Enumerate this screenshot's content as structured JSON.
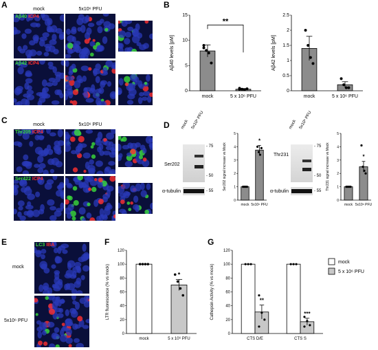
{
  "panels": {
    "A": {
      "label": "A",
      "cols": [
        "mock",
        "5x10⁶ PFU"
      ],
      "row1_stain": {
        "g": "Aβ40",
        "r": "ICP4"
      },
      "row2_stain": {
        "g": "Aβ42",
        "r": "ICP4"
      }
    },
    "B": {
      "label": "B"
    },
    "C": {
      "label": "C",
      "cols": [
        "mock",
        "5x10⁶ PFU"
      ],
      "row1_stain": {
        "g": "Thr205",
        "r": "ICP4"
      },
      "row2_stain": {
        "g": "Ser422",
        "r": "ICP4"
      }
    },
    "D": {
      "label": "D",
      "blot1": {
        "lanes": [
          "mock",
          "5x10⁶ PFU"
        ],
        "protein": "Ser202",
        "loading": "α-tubulin",
        "markers": [
          "75",
          "50",
          "55"
        ]
      },
      "blot2": {
        "lanes": [
          "mock",
          "5x10⁶ PFU"
        ],
        "protein": "Thr231",
        "loading": "α-tubulin",
        "markers": [
          "75",
          "50",
          "55"
        ]
      }
    },
    "E": {
      "label": "E",
      "stain": {
        "g": "LC3",
        "r": "IBA"
      },
      "rows": [
        "mock",
        "5x10⁶ PFU"
      ]
    },
    "F": {
      "label": "F"
    },
    "G": {
      "label": "G"
    }
  },
  "colors": {
    "gray_bar": "#8c8c8c",
    "light_bar": "#c8c8c8",
    "micro_bg": "#0a0f3a",
    "nuclei": "#2a3ab8",
    "green": "#3bdc3b",
    "red": "#ff3030"
  },
  "chart_data": [
    {
      "id": "B1",
      "type": "bar",
      "categories": [
        "mock",
        "5 x 10⁶ PFU"
      ],
      "values": [
        7.9,
        0.3
      ],
      "errors": [
        1.2,
        0.15
      ],
      "points": [
        [
          9.0,
          8.0,
          7.5,
          5.5,
          8.5
        ],
        [
          0.5,
          0.3,
          0.2,
          0.4,
          0.3
        ]
      ],
      "ylabel": "Aβ40 levels [pM]",
      "ylim": [
        0,
        15
      ],
      "yticks": [
        0,
        5,
        10,
        15
      ],
      "significance": "**"
    },
    {
      "id": "B2",
      "type": "bar",
      "categories": [
        "mock",
        "5 x 10⁶ PFU"
      ],
      "values": [
        1.4,
        0.2
      ],
      "errors": [
        0.4,
        0.1
      ],
      "points": [
        [
          2.0,
          1.5,
          1.1,
          0.9
        ],
        [
          0.4,
          0.2,
          0.1,
          0.1
        ]
      ],
      "ylabel": "Aβ42 levels [pM]",
      "ylim": [
        0,
        2.5
      ],
      "yticks": [
        0.0,
        0.5,
        1.0,
        1.5,
        2.0,
        2.5
      ]
    },
    {
      "id": "D1",
      "type": "bar",
      "categories": [
        "mock",
        "5x10⁶ PFU"
      ],
      "values": [
        1.0,
        3.75
      ],
      "errors": [
        0,
        0.35
      ],
      "points": [
        [
          1,
          1,
          1,
          1
        ],
        [
          4.0,
          3.6,
          3.4,
          3.9
        ]
      ],
      "ylabel": "Ser202 signal increase vs Mock",
      "ylim": [
        0,
        5
      ],
      "yticks": [
        0,
        1,
        2,
        3,
        4,
        5
      ],
      "significance": "*"
    },
    {
      "id": "D2",
      "type": "bar",
      "categories": [
        "mock",
        "5x10⁶ PFU"
      ],
      "values": [
        1.0,
        2.5
      ],
      "errors": [
        0,
        0.4
      ],
      "points": [
        [
          1,
          1,
          1,
          1
        ],
        [
          4.1,
          2.5,
          2.2,
          2.0
        ]
      ],
      "ylabel": "Thr231 signal increase vs Mock",
      "ylim": [
        0,
        5
      ],
      "yticks": [
        0,
        1,
        2,
        3,
        4,
        5
      ],
      "significance": "*"
    },
    {
      "id": "F",
      "type": "bar",
      "categories": [
        "mock",
        "5 x 10⁶ PFU"
      ],
      "values": [
        100,
        70
      ],
      "errors": [
        0,
        8
      ],
      "points": [
        [
          100,
          100,
          100,
          100
        ],
        [
          85,
          75,
          65,
          55
        ]
      ],
      "ylabel": "LTR fluorescence (% vs mock)",
      "ylim": [
        0,
        120
      ],
      "yticks": [
        0,
        20,
        40,
        60,
        80,
        100,
        120
      ],
      "significance": "*"
    },
    {
      "id": "G",
      "type": "bar",
      "categories": [
        "CTS D/E",
        "CTS S"
      ],
      "series": [
        {
          "name": "mock",
          "values": [
            100,
            100
          ],
          "errors": [
            0,
            0
          ]
        },
        {
          "name": "5 x 10⁶ PFU",
          "values": [
            31,
            17
          ],
          "errors": [
            10,
            5
          ]
        }
      ],
      "points": [
        [
          [
            100,
            100,
            100
          ],
          [
            55,
            30,
            20,
            10
          ]
        ],
        [
          [
            100,
            100,
            100
          ],
          [
            24,
            18,
            12,
            10
          ]
        ]
      ],
      "ylabel": "Cathepsin Activity (% vs mock)",
      "ylim": [
        0,
        120
      ],
      "yticks": [
        0,
        20,
        40,
        60,
        80,
        100,
        120
      ],
      "significance": [
        "**",
        "***"
      ]
    }
  ]
}
